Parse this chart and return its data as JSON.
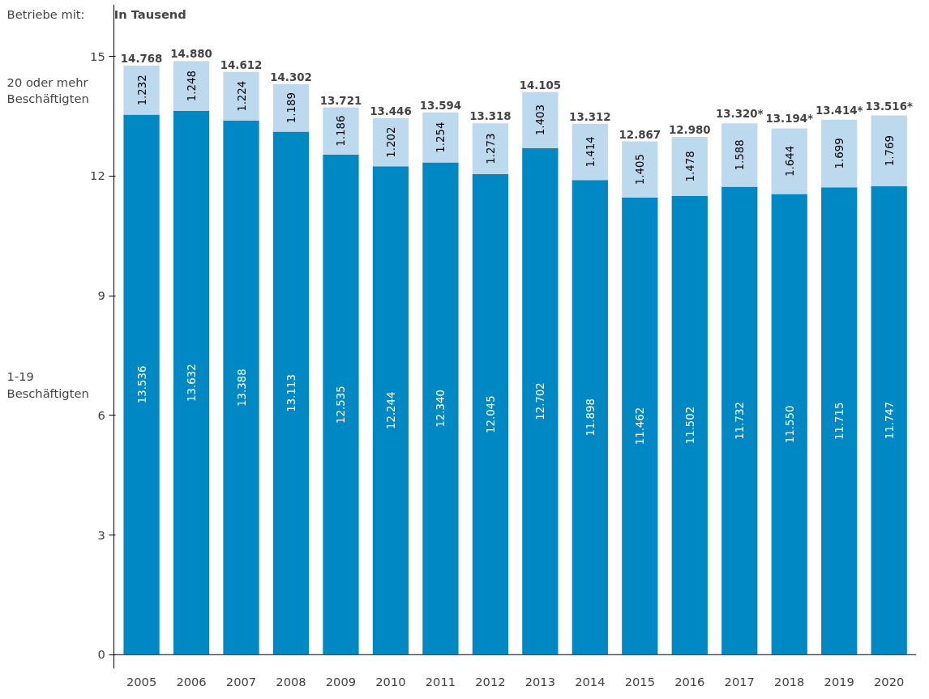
{
  "chart_data": {
    "type": "bar",
    "stacked": true,
    "legend_title": "Betriebe mit:",
    "ylabel": "In Tausend",
    "categories": [
      "2005",
      "2006",
      "2007",
      "2008",
      "2009",
      "2010",
      "2011",
      "2012",
      "2013",
      "2014",
      "2015",
      "2016",
      "2017",
      "2018",
      "2019",
      "2020"
    ],
    "series": [
      {
        "name": "1-19 Beschäftigten",
        "color": "#0088c4",
        "values": [
          13.536,
          13.632,
          13.388,
          13.113,
          12.535,
          12.244,
          12.34,
          12.045,
          12.702,
          11.898,
          11.462,
          11.502,
          11.732,
          11.55,
          11.715,
          11.747
        ],
        "value_labels": [
          "13.536",
          "13.632",
          "13.388",
          "13.113",
          "12.535",
          "12.244",
          "12.340",
          "12.045",
          "12.702",
          "11.898",
          "11.462",
          "11.502",
          "11.732",
          "11.550",
          "11.715",
          "11.747"
        ]
      },
      {
        "name": "20 oder mehr Beschäftigten",
        "color": "#bcd9ee",
        "values": [
          1.232,
          1.248,
          1.224,
          1.189,
          1.186,
          1.202,
          1.254,
          1.273,
          1.403,
          1.414,
          1.405,
          1.478,
          1.588,
          1.644,
          1.699,
          1.769
        ],
        "value_labels": [
          "1.232",
          "1.248",
          "1.224",
          "1.189",
          "1.186",
          "1.202",
          "1.254",
          "1.273",
          "1.403",
          "1.414",
          "1.405",
          "1.478",
          "1.588",
          "1.644",
          "1.699",
          "1.769"
        ]
      }
    ],
    "totals": [
      "14.768",
      "14.880",
      "14.612",
      "14.302",
      "13.721",
      "13.446",
      "13.594",
      "13.318",
      "14.105",
      "13.312",
      "12.867",
      "12.980",
      "13.320*",
      "13.194*",
      "13.414*",
      "13.516*"
    ],
    "ylim": [
      -0.35,
      16.3
    ],
    "yticks": [
      0,
      3,
      6,
      9,
      12,
      15
    ],
    "grid": false
  }
}
